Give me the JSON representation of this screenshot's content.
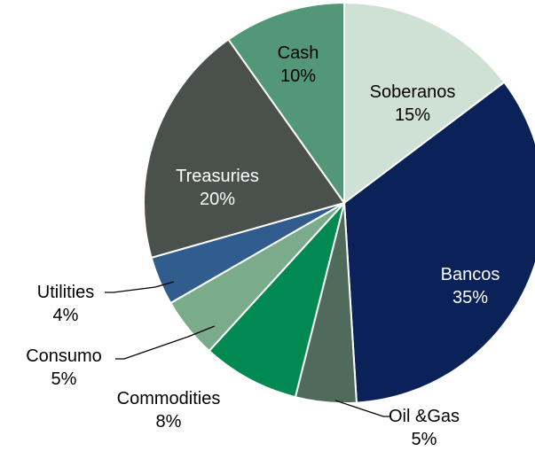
{
  "chart_data": {
    "type": "pie",
    "title": "",
    "start_angle_deg": 0,
    "direction": "clockwise",
    "slices": [
      {
        "name": "Soberanos",
        "value": 15,
        "label": "15%",
        "color": "#cfe0d4"
      },
      {
        "name": "Bancos",
        "value": 35,
        "label": "35%",
        "color": "#0a2258"
      },
      {
        "name": "Oil &Gas",
        "value": 5,
        "label": "5%",
        "color": "#506b5c"
      },
      {
        "name": "Commodities",
        "value": 8,
        "label": "8%",
        "color": "#008a52"
      },
      {
        "name": "Consumo",
        "value": 5,
        "label": "5%",
        "color": "#7aac8c"
      },
      {
        "name": "Utilities",
        "value": 4,
        "label": "4%",
        "color": "#305c8e"
      },
      {
        "name": "Treasuries",
        "value": 20,
        "label": "20%",
        "color": "#4a514d"
      },
      {
        "name": "Cash",
        "value": 10,
        "label": "10%",
        "color": "#529878"
      }
    ],
    "label_colors": {
      "inside_light": "#ffffff",
      "inside_dark": "#000000",
      "outside": "#000000"
    }
  }
}
